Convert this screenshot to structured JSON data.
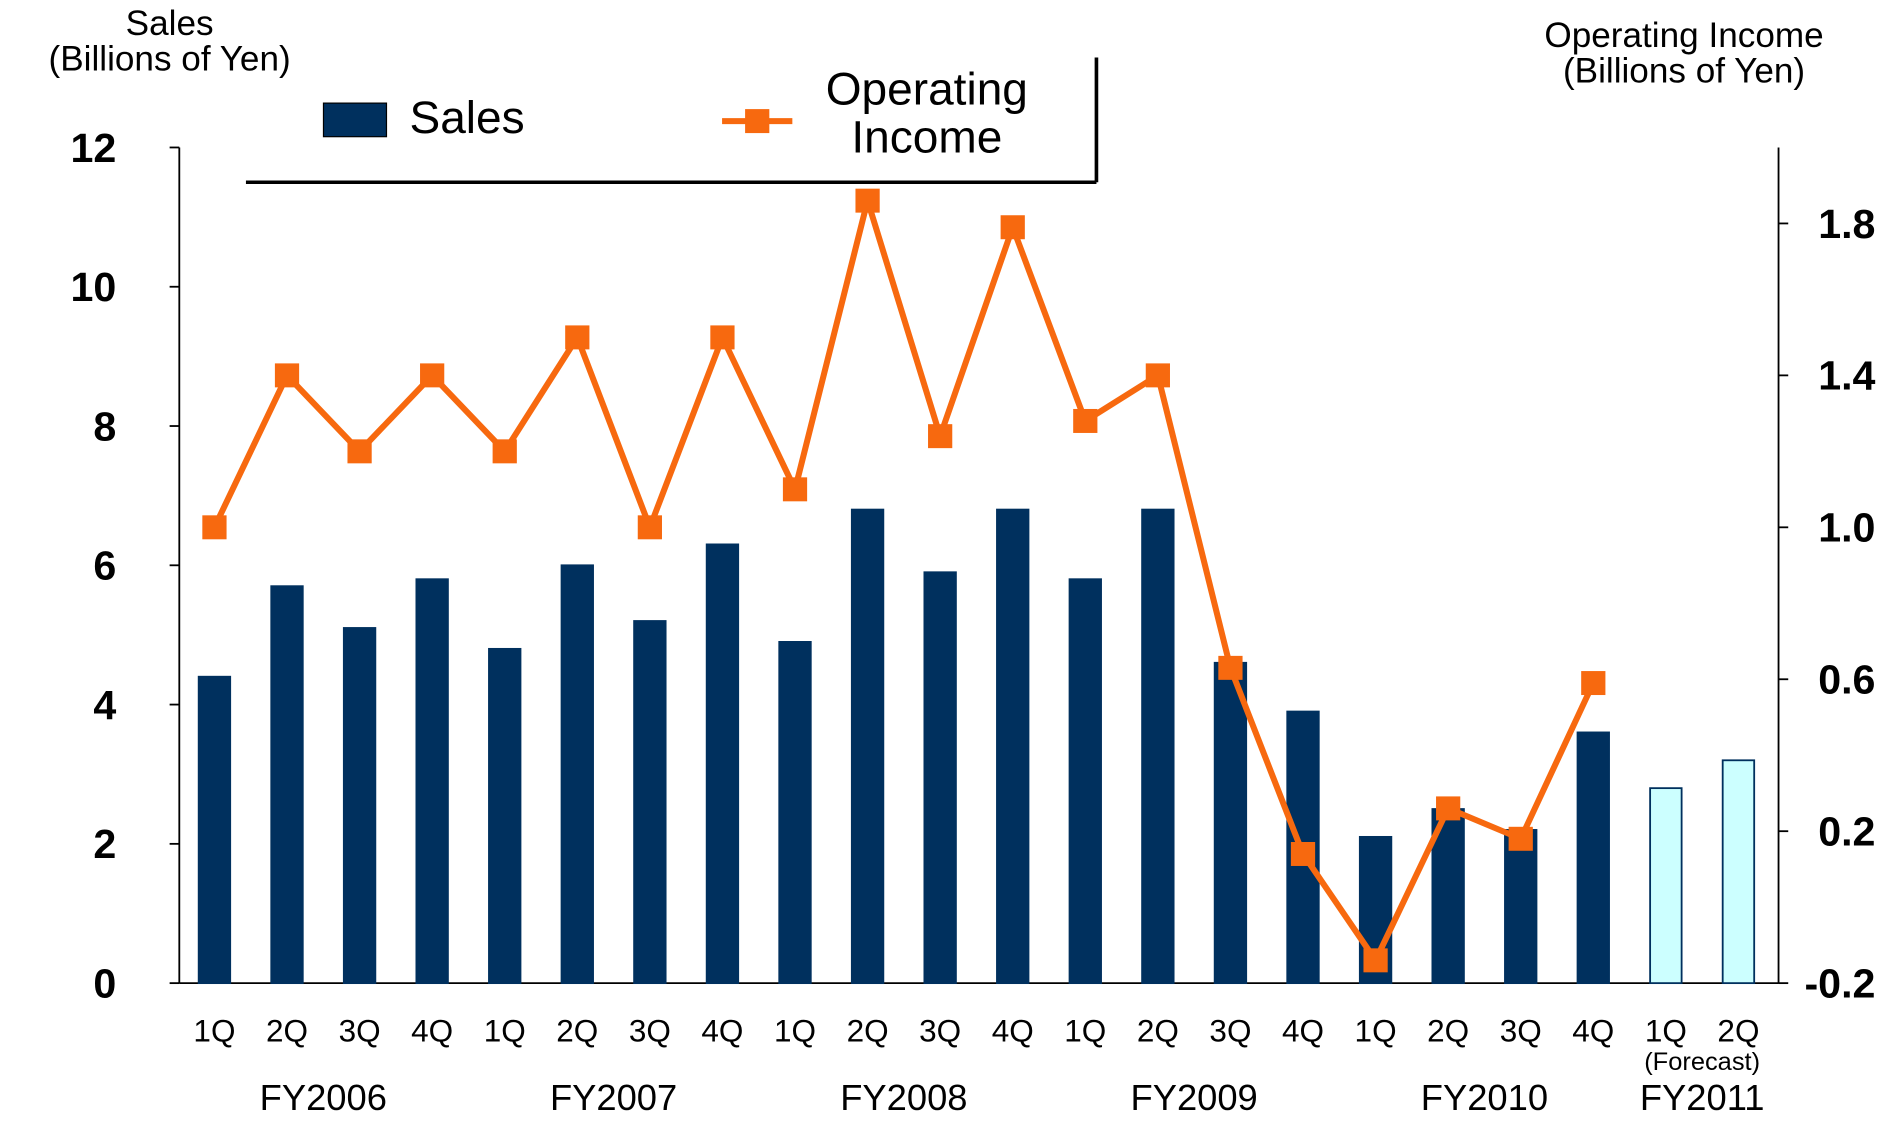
{
  "chart_data": {
    "type": "bar_line",
    "y_label": "Sales\n(Billions of Yen)",
    "y2_label": "Operating Income\n(Billions of Yen)",
    "categories": [
      "1Q",
      "2Q",
      "3Q",
      "4Q",
      "1Q",
      "2Q",
      "3Q",
      "4Q",
      "1Q",
      "2Q",
      "3Q",
      "4Q",
      "1Q",
      "2Q",
      "3Q",
      "4Q",
      "1Q",
      "2Q",
      "3Q",
      "4Q",
      "1Q",
      "2Q"
    ],
    "groups": [
      "FY2006",
      "FY2007",
      "FY2008",
      "FY2009",
      "FY2010",
      "FY2011"
    ],
    "annotation": "(Forecast)",
    "series": [
      {
        "name": "Sales",
        "type": "bar",
        "color": "#00305e",
        "colors": [
          "#00305e",
          "#00305e",
          "#00305e",
          "#00305e",
          "#00305e",
          "#00305e",
          "#00305e",
          "#00305e",
          "#00305e",
          "#00305e",
          "#00305e",
          "#00305e",
          "#00305e",
          "#00305e",
          "#00305e",
          "#00305e",
          "#00305e",
          "#00305e",
          "#00305e",
          "#00305e",
          "#ccffff",
          "#ccffff"
        ],
        "values": [
          4.4,
          5.7,
          5.1,
          5.8,
          4.8,
          6.0,
          5.2,
          6.3,
          4.9,
          6.8,
          5.9,
          6.8,
          5.8,
          6.8,
          4.6,
          3.9,
          2.1,
          2.5,
          2.2,
          3.6,
          2.8,
          3.2
        ]
      },
      {
        "name": "Operating\nIncome",
        "type": "line",
        "axis": "y2",
        "color": "#f7690f",
        "values": [
          1.0,
          1.4,
          1.2,
          1.4,
          1.2,
          1.5,
          1.0,
          1.5,
          1.1,
          1.86,
          1.24,
          1.79,
          1.28,
          1.4,
          0.63,
          0.14,
          -0.14,
          0.26,
          0.18,
          0.59,
          null,
          null
        ]
      }
    ],
    "ylim": [
      0,
      12
    ],
    "yticks": [
      0,
      2,
      4,
      6,
      8,
      10,
      12
    ],
    "y2lim": [
      -0.2,
      2.0
    ],
    "y2ticks": [
      -0.2,
      0.2,
      0.6,
      {
        "value": 1.0,
        "label": "1.0"
      },
      1.4,
      1.8
    ]
  }
}
